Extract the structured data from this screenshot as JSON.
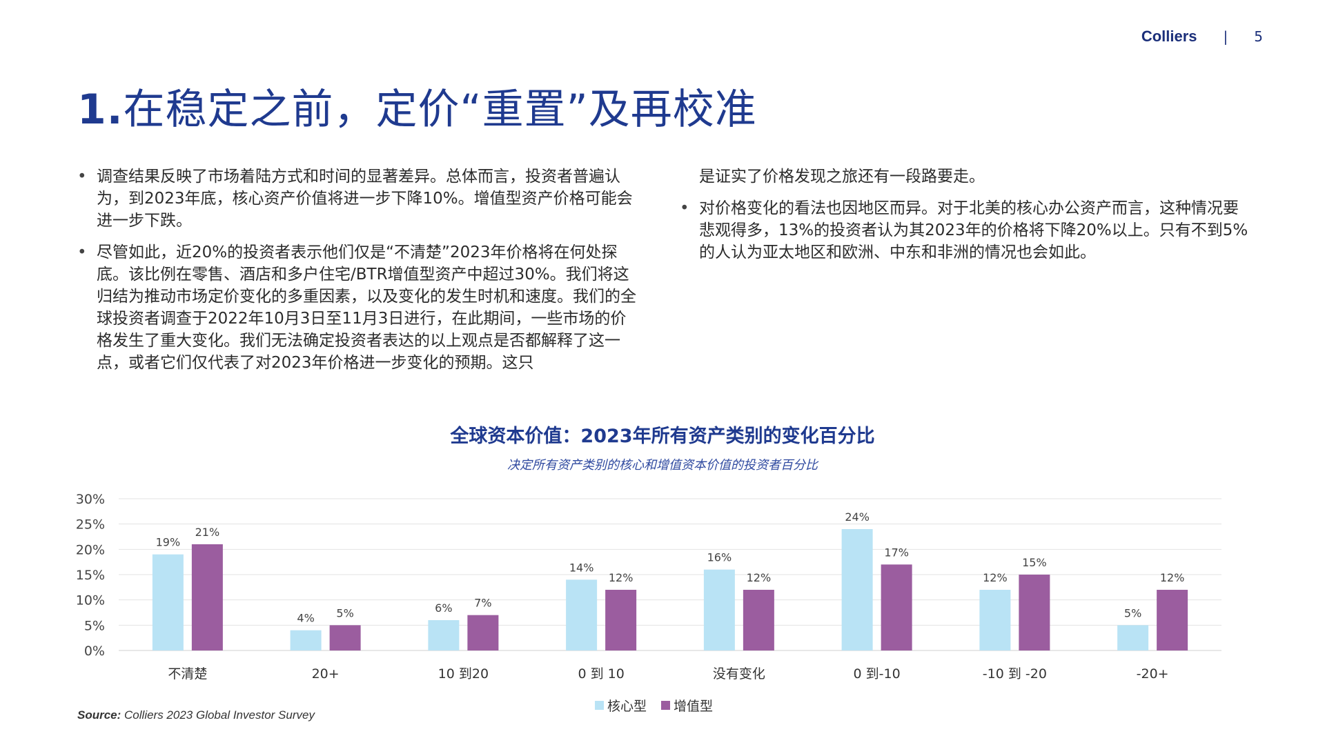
{
  "header": {
    "brand": "Colliers",
    "separator": "|",
    "page": "5"
  },
  "title": {
    "number": "1.",
    "text": "在稳定之前，定价“重置”及再校准"
  },
  "left_column": [
    {
      "bullet": true,
      "text": "调查结果反映了市场着陆方式和时间的显著差异。总体而言，投资者普遍认为，到2023年底，核心资产价值将进一步下降10%。增值型资产价格可能会进一步下跌。"
    },
    {
      "bullet": true,
      "text": "尽管如此，近20%的投资者表示他们仅是“不清楚”2023年价格将在何处探底。该比例在零售、酒店和多户住宅/BTR增值型资产中超过30%。我们将这归结为推动市场定价变化的多重因素，以及变化的发生时机和速度。我们的全球投资者调查于2022年10月3日至11月3日进行，在此期间，一些市场的价格发生了重大变化。我们无法确定投资者表达的以上观点是否都解释了这一点，或者它们仅代表了对2023年价格进一步变化的预期。这只"
    }
  ],
  "right_column": [
    {
      "bullet": false,
      "text": "是证实了价格发现之旅还有一段路要走。"
    },
    {
      "bullet": true,
      "text": "对价格变化的看法也因地区而异。对于北美的核心办公资产而言，这种情况要悲观得多，13%的投资者认为其2023年的价格将下降20%以上。只有不到5%的人认为亚太地区和欧洲、中东和非洲的情况也会如此。"
    }
  ],
  "chart_data": {
    "type": "bar",
    "title": "全球资本价值：2023年所有资产类别的变化百分比",
    "subtitle": "决定所有资产类别的核心和增值资本价值的投资者百分比",
    "categories": [
      "不清楚",
      "20+",
      "10 到20",
      "0 到 10",
      "没有变化",
      "0 到-10",
      "-10 到 -20",
      "-20+"
    ],
    "series": [
      {
        "name": "核心型",
        "values": [
          19,
          4,
          6,
          14,
          16,
          24,
          12,
          5
        ],
        "color": "#b9e3f5"
      },
      {
        "name": "增值型",
        "values": [
          21,
          5,
          7,
          12,
          12,
          17,
          15,
          12
        ],
        "color": "#9b5d9f"
      }
    ],
    "yticks": [
      "0%",
      "5%",
      "10%",
      "15%",
      "20%",
      "25%",
      "30%"
    ],
    "ylim": [
      0,
      30
    ],
    "value_suffix": "%",
    "grid": true,
    "legend": "bottom-center"
  },
  "source": {
    "label": "Source:",
    "text": "Colliers 2023 Global Investor Survey"
  }
}
